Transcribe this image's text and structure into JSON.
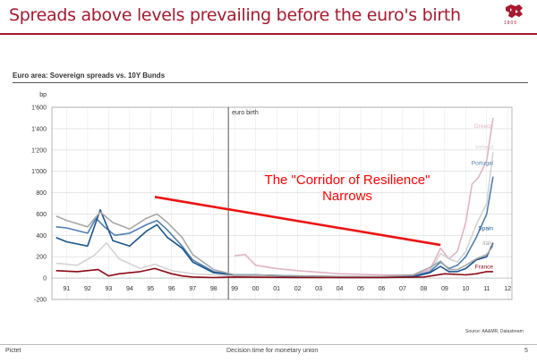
{
  "slide": {
    "title": "Spreads above levels prevailing before the euro's birth",
    "subtitle": "Euro area: Sovereign spreads vs. 10Y Bunds",
    "source": "Source: AA&MR, Datastream",
    "footer_left": "Pictet",
    "footer_center": "Decision time for monetary union",
    "page_number": "5",
    "logo_year": "1805",
    "brand_color": "#a8192e"
  },
  "chart_data": {
    "type": "line",
    "title": "Euro area: Sovereign spreads vs. 10Y Bunds",
    "ylabel": "bp",
    "ylim": [
      -200,
      1600
    ],
    "yticks": [
      -200,
      0,
      200,
      400,
      600,
      800,
      1000,
      1200,
      1400,
      1600
    ],
    "ytick_labels": [
      "-200",
      "0",
      "200",
      "400",
      "600",
      "800",
      "1'000",
      "1'200",
      "1'400",
      "1'600"
    ],
    "xlim": [
      1990.3,
      2012.2
    ],
    "xticks": [
      1991,
      1992,
      1993,
      1994,
      1995,
      1996,
      1997,
      1998,
      1999,
      2000,
      2001,
      2002,
      2003,
      2004,
      2005,
      2006,
      2007,
      2008,
      2009,
      2010,
      2011,
      2012
    ],
    "xtick_labels": [
      "91",
      "92",
      "93",
      "94",
      "95",
      "96",
      "97",
      "98",
      "99",
      "00",
      "01",
      "02",
      "03",
      "04",
      "05",
      "06",
      "07",
      "08",
      "09",
      "10",
      "11",
      "12"
    ],
    "grid": true,
    "euro_birth": {
      "x": 1998.7,
      "label": "euro birth"
    },
    "annotation": {
      "line1": "The \"Corridor of Resilience\"",
      "line2": "Narrows",
      "color": "#ff0000"
    },
    "corridor_line": {
      "x": [
        1995.2,
        2008.8
      ],
      "y": [
        760,
        310
      ],
      "color": "#ee1111"
    },
    "series": [
      {
        "name": "Greece",
        "color": "#e0b4c6",
        "x": [
          1999.0,
          1999.5,
          2000.0,
          2001.0,
          2002.0,
          2004.0,
          2006.0,
          2007.5,
          2008.3,
          2008.8,
          2009.2,
          2009.6,
          2010.0,
          2010.3,
          2010.6,
          2011.0,
          2011.3
        ],
        "y": [
          210,
          220,
          120,
          90,
          70,
          40,
          30,
          30,
          80,
          280,
          180,
          250,
          520,
          880,
          940,
          1100,
          1500
        ]
      },
      {
        "name": "Ireland",
        "color": "#d4d4d4",
        "x": [
          1990.5,
          1991.5,
          1992.3,
          1992.9,
          1993.5,
          1994.5,
          1995.2,
          1996.0,
          1997.0,
          1998.0,
          1999.0,
          2000.0,
          2002.0,
          2004.0,
          2006.0,
          2007.5,
          2008.3,
          2008.8,
          2009.2,
          2009.6,
          2010.0,
          2010.5,
          2011.0,
          2011.3
        ],
        "y": [
          140,
          120,
          210,
          330,
          180,
          90,
          130,
          70,
          40,
          30,
          20,
          15,
          10,
          5,
          5,
          15,
          60,
          230,
          180,
          150,
          250,
          500,
          700,
          1180
        ]
      },
      {
        "name": "Portugal",
        "color": "#4f7fb0",
        "x": [
          1990.5,
          1991.0,
          1992.0,
          1992.4,
          1992.8,
          1993.3,
          1994.0,
          1994.8,
          1995.3,
          1995.8,
          1996.5,
          1997.0,
          1998.0,
          1999.0,
          2000.0,
          2002.0,
          2004.0,
          2006.0,
          2007.5,
          2008.3,
          2008.8,
          2009.2,
          2009.6,
          2010.0,
          2010.5,
          2011.0,
          2011.3
        ],
        "y": [
          480,
          470,
          420,
          560,
          480,
          400,
          420,
          500,
          540,
          450,
          300,
          170,
          60,
          30,
          30,
          20,
          15,
          10,
          20,
          60,
          150,
          90,
          120,
          200,
          380,
          600,
          950
        ]
      },
      {
        "name": "Spain",
        "color": "#1a5490",
        "x": [
          1990.5,
          1991.0,
          1992.0,
          1992.6,
          1993.2,
          1994.0,
          1994.8,
          1995.3,
          1995.8,
          1996.5,
          1997.0,
          1998.0,
          1999.0,
          2000.0,
          2002.0,
          2004.0,
          2006.0,
          2007.5,
          2008.3,
          2008.8,
          2009.2,
          2009.6,
          2010.0,
          2010.5,
          2011.0,
          2011.3
        ],
        "y": [
          380,
          340,
          300,
          640,
          350,
          300,
          440,
          500,
          380,
          280,
          150,
          50,
          30,
          30,
          15,
          5,
          5,
          10,
          50,
          110,
          60,
          60,
          90,
          170,
          200,
          330
        ]
      },
      {
        "name": "Italy",
        "color": "#a8a8a8",
        "x": [
          1990.5,
          1991.0,
          1992.0,
          1992.6,
          1993.2,
          1994.0,
          1994.8,
          1995.3,
          1995.8,
          1996.5,
          1997.0,
          1998.0,
          1999.0,
          2000.0,
          2002.0,
          2004.0,
          2006.0,
          2007.5,
          2008.3,
          2008.8,
          2009.2,
          2009.6,
          2010.0,
          2010.5,
          2011.0,
          2011.3
        ],
        "y": [
          580,
          540,
          480,
          620,
          520,
          460,
          560,
          600,
          520,
          380,
          220,
          80,
          30,
          30,
          20,
          15,
          15,
          30,
          100,
          160,
          80,
          80,
          120,
          180,
          220,
          300
        ]
      },
      {
        "name": "France",
        "color": "#8b0a14",
        "x": [
          1990.5,
          1991.5,
          1992.5,
          1993.0,
          1993.5,
          1994.5,
          1995.2,
          1996.0,
          1996.5,
          1997.0,
          1998.0,
          1999.0,
          2002.0,
          2006.0,
          2008.0,
          2009.0,
          2010.0,
          2010.5,
          2011.0,
          2011.3
        ],
        "y": [
          70,
          60,
          80,
          20,
          40,
          60,
          90,
          40,
          20,
          10,
          5,
          10,
          5,
          5,
          10,
          40,
          30,
          40,
          60,
          60
        ]
      }
    ],
    "legend": "direct labels at right end of lines"
  }
}
